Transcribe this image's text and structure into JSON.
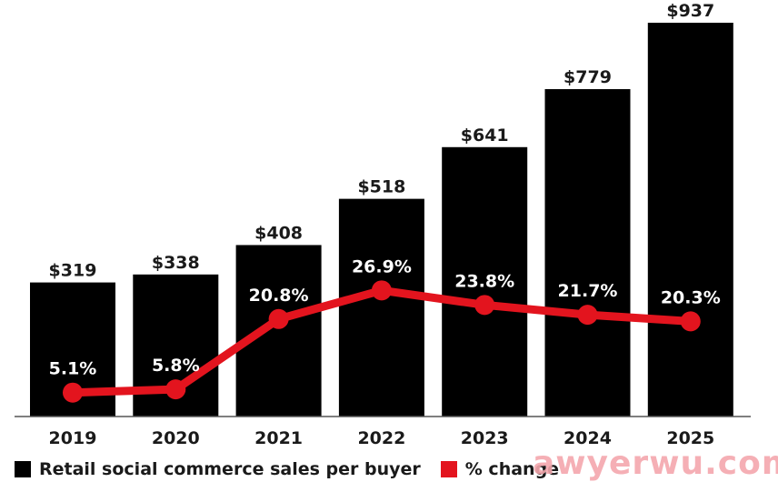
{
  "chart_data": {
    "type": "bar",
    "title": "",
    "xlabel": "",
    "ylabel": "",
    "categories": [
      "2019",
      "2020",
      "2021",
      "2022",
      "2023",
      "2024",
      "2025"
    ],
    "series": [
      {
        "name": "Retail social commerce sales per buyer",
        "type": "bar",
        "color": "#000000",
        "values": [
          319,
          338,
          408,
          518,
          641,
          779,
          937
        ],
        "labels": [
          "$319",
          "$338",
          "$408",
          "$518",
          "$641",
          "$779",
          "$937"
        ]
      },
      {
        "name": "% change",
        "type": "line",
        "color": "#e3141e",
        "values": [
          5.1,
          5.8,
          20.8,
          26.9,
          23.8,
          21.7,
          20.3
        ],
        "labels": [
          "5.1%",
          "5.8%",
          "20.8%",
          "26.9%",
          "23.8%",
          "21.7%",
          "20.3%"
        ]
      }
    ],
    "ylim": [
      0,
      937
    ],
    "y2lim": [
      0,
      84
    ],
    "grid": false,
    "legend_position": "bottom-left"
  },
  "legend": {
    "items": [
      {
        "label": "Retail social commerce sales per buyer",
        "color": "#000000"
      },
      {
        "label": "% change",
        "color": "#e3141e"
      }
    ]
  },
  "watermark": "awyerwu.com"
}
